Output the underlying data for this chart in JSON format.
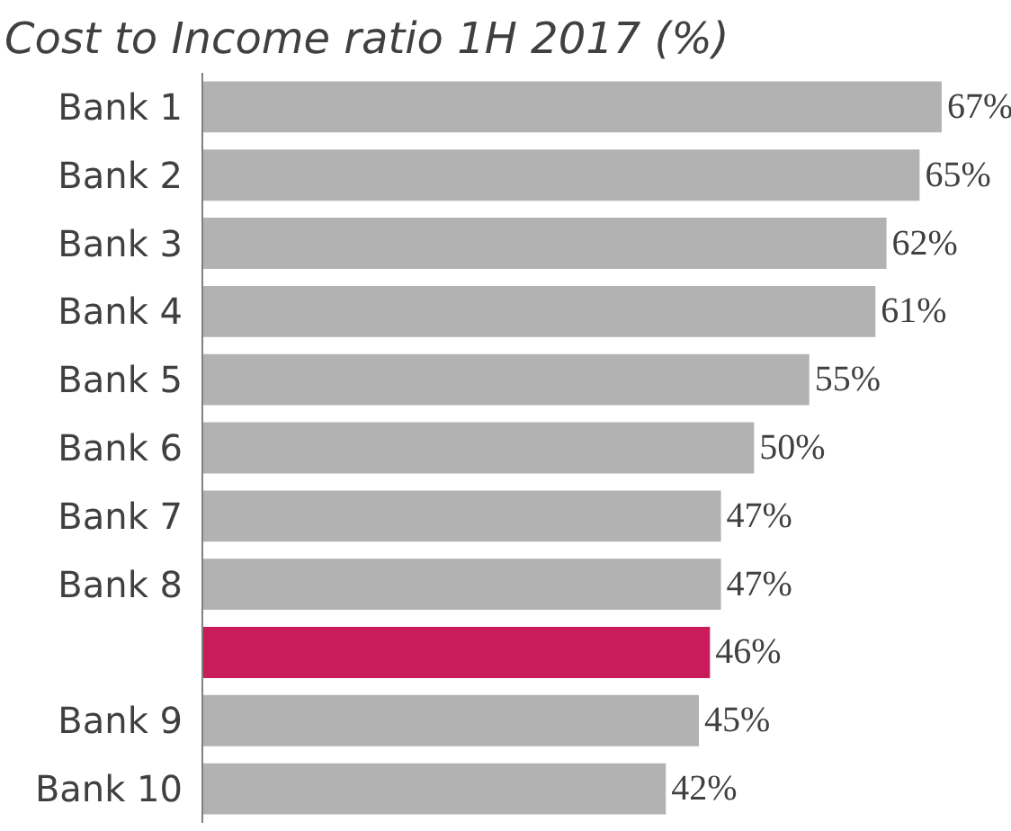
{
  "chart_data": {
    "type": "bar",
    "orientation": "horizontal",
    "title": "Cost to Income ratio 1H 2017 (%)",
    "categories": [
      "Bank 1",
      "Bank 2",
      "Bank 3",
      "Bank 4",
      "Bank 5",
      "Bank 6",
      "Bank 7",
      "Bank 8",
      null,
      "Bank 9",
      "Bank 10"
    ],
    "values": [
      67,
      65,
      62,
      61,
      55,
      50,
      47,
      47,
      46,
      45,
      42
    ],
    "colors": [
      "#b2b2b2",
      "#b2b2b2",
      "#b2b2b2",
      "#b2b2b2",
      "#b2b2b2",
      "#b2b2b2",
      "#b2b2b2",
      "#b2b2b2",
      "#c81d5a",
      "#b2b2b2",
      "#b2b2b2"
    ],
    "value_labels": [
      "67%",
      "65%",
      "62%",
      "61%",
      "55%",
      "50%",
      "47%",
      "47%",
      "46%",
      "45%",
      "42%"
    ],
    "grid": false
  }
}
